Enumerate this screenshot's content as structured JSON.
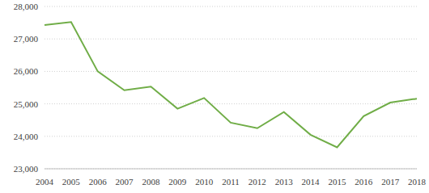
{
  "chart_data": {
    "type": "line",
    "categories": [
      "2004",
      "2005",
      "2006",
      "2007",
      "2008",
      "2009",
      "2010",
      "2011",
      "2012",
      "2013",
      "2014",
      "2015",
      "2016",
      "2017",
      "2018"
    ],
    "values": [
      27430,
      27520,
      26000,
      25420,
      25530,
      24850,
      25180,
      24420,
      24250,
      24750,
      24050,
      23660,
      24620,
      25040,
      25160
    ],
    "color": "#70ad47",
    "ylim": [
      23000,
      28000
    ],
    "yticks": [
      {
        "value": 23000,
        "label": "23,000"
      },
      {
        "value": 24000,
        "label": "24,000"
      },
      {
        "value": 25000,
        "label": "25,000"
      },
      {
        "value": 26000,
        "label": "26,000"
      },
      {
        "value": 27000,
        "label": "27,000"
      },
      {
        "value": 28000,
        "label": "28,000"
      }
    ],
    "grid": true
  }
}
